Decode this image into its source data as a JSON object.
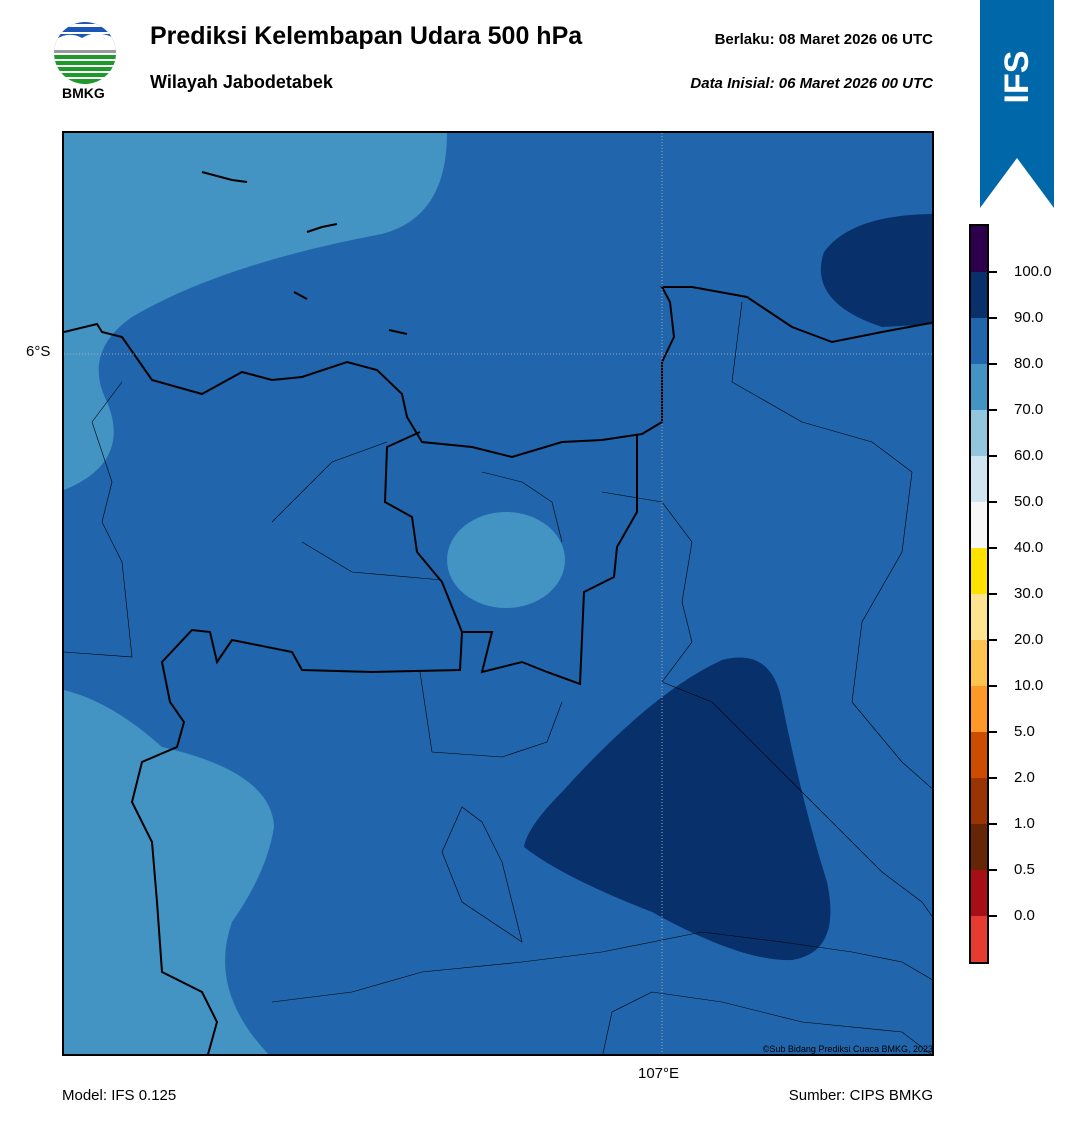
{
  "header": {
    "title": "Prediksi Kelembapan Udara 500 hPa",
    "subtitle": "Wilayah Jabodetabek",
    "valid_label": "Berlaku:  08 Maret 2026 06 UTC",
    "init_label": "Data Inisial:  06 Maret 2026 00 UTC",
    "logo_text": "BMKG"
  },
  "ribbon": {
    "label": "IFS",
    "color": "#0068a8"
  },
  "map": {
    "lat_label": "6°S",
    "lon_label": "107°E",
    "copyright": "©Sub Bidang Prediksi Cuaca BMKG, 2023",
    "colors": {
      "70-80": "#4393c3",
      "80-90": "#2166ac",
      "90-100": "#08306b"
    }
  },
  "colorbar": {
    "colors": [
      "#2d004b",
      "#08306b",
      "#2166ac",
      "#4393c3",
      "#92c5de",
      "#d1e5f0",
      "#f7f7f7",
      "#ffe100",
      "#fee391",
      "#fec44f",
      "#fe9929",
      "#cc4c02",
      "#993404",
      "#662506",
      "#a50f15",
      "#e53b30"
    ],
    "ticks": [
      "100.0",
      "90.0",
      "80.0",
      "70.0",
      "60.0",
      "50.0",
      "40.0",
      "30.0",
      "20.0",
      "10.0",
      "5.0",
      "2.0",
      "1.0",
      "0.5",
      "0.0"
    ]
  },
  "footer": {
    "model": "Model: IFS 0.125",
    "source": "Sumber: CIPS BMKG"
  }
}
